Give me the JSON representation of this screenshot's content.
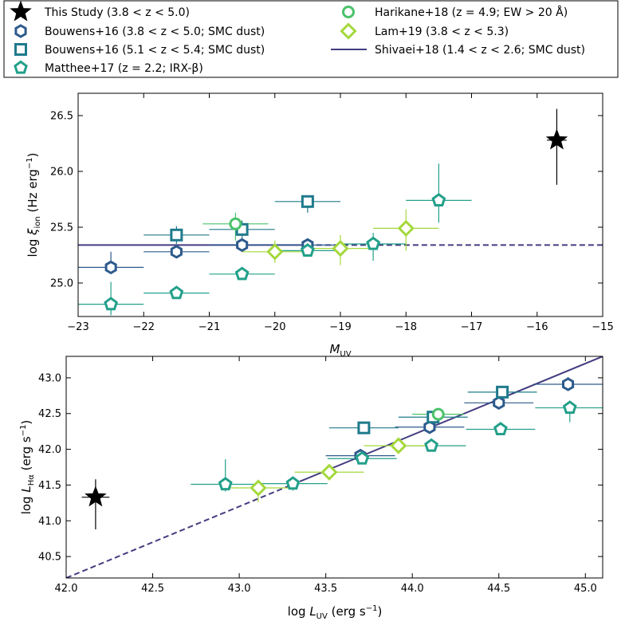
{
  "colors": {
    "black": "#000000",
    "bouwens": "#2d5a8c",
    "bouwens_hi": "#1f7a8c",
    "matthee": "#23a08a",
    "harikane": "#4cc26c",
    "lam": "#a4d83c",
    "shivaei": "#433d80"
  },
  "legend": {
    "this_study": "This Study (3.8 < z < 5.0)",
    "bouwens_lo": "Bouwens+16 (3.8 < z < 5.0; SMC dust)",
    "bouwens_hi": "Bouwens+16 (5.1 < z < 5.4; SMC dust)",
    "matthee": "Matthee+17 (z = 2.2; IRX-β)",
    "harikane": "Harikane+18 (z = 4.9; EW > 20 Å)",
    "lam": "Lam+19 (3.8 < z < 5.3)",
    "shivaei": "Shivaei+18 (1.4 < z < 2.6; SMC dust)"
  },
  "chart_data": [
    {
      "type": "scatter",
      "panel": "top",
      "xlabel": "M_UV",
      "ylabel": "log ξ_ion (Hz erg⁻¹)",
      "xlim": [
        -23,
        -15
      ],
      "ylim": [
        24.7,
        26.7
      ],
      "xticks": [
        "−23",
        "−22",
        "−21",
        "−20",
        "−19",
        "−18",
        "−17",
        "−16",
        "−15"
      ],
      "yticks": [
        "25.0",
        "25.5",
        "26.0",
        "26.5"
      ],
      "series": [
        {
          "name": "This Study",
          "marker": "star",
          "points": [
            {
              "x": -15.7,
              "y": 26.28,
              "xerr": 0.15,
              "yerr_lo": 0.4,
              "yerr_hi": 0.28
            }
          ]
        },
        {
          "name": "Bouwens+16 (3.8<z<5.0)",
          "marker": "hexagon",
          "points": [
            {
              "x": -22.5,
              "y": 25.14,
              "xerr": 0.5,
              "yerr_lo": 0.0,
              "yerr_hi": 0.14
            },
            {
              "x": -21.5,
              "y": 25.28,
              "xerr": 0.5,
              "yerr_lo": 0.0,
              "yerr_hi": 0.0
            },
            {
              "x": -20.5,
              "y": 25.34,
              "xerr": 0.5,
              "yerr_lo": 0.0,
              "yerr_hi": 0.0
            },
            {
              "x": -19.5,
              "y": 25.34,
              "xerr": 0.5,
              "yerr_lo": 0.0,
              "yerr_hi": 0.0
            }
          ]
        },
        {
          "name": "Bouwens+16 (5.1<z<5.4)",
          "marker": "square",
          "points": [
            {
              "x": -21.5,
              "y": 25.43,
              "xerr": 0.5,
              "yerr_lo": 0.08,
              "yerr_hi": 0.08
            },
            {
              "x": -20.5,
              "y": 25.48,
              "xerr": 0.5,
              "yerr_lo": 0.08,
              "yerr_hi": 0.08
            },
            {
              "x": -19.5,
              "y": 25.73,
              "xerr": 0.5,
              "yerr_lo": 0.1,
              "yerr_hi": 0.05
            }
          ]
        },
        {
          "name": "Matthee+17",
          "marker": "pentagon",
          "points": [
            {
              "x": -22.5,
              "y": 24.81,
              "xerr": 0.5,
              "yerr_lo": 0.1,
              "yerr_hi": 0.2
            },
            {
              "x": -21.5,
              "y": 24.91,
              "xerr": 0.5,
              "yerr_lo": 0.0,
              "yerr_hi": 0.0
            },
            {
              "x": -20.5,
              "y": 25.08,
              "xerr": 0.5,
              "yerr_lo": 0.0,
              "yerr_hi": 0.0
            },
            {
              "x": -19.5,
              "y": 25.29,
              "xerr": 0.5,
              "yerr_lo": 0.0,
              "yerr_hi": 0.0
            },
            {
              "x": -18.5,
              "y": 25.35,
              "xerr": 0.5,
              "yerr_lo": 0.15,
              "yerr_hi": 0.1
            },
            {
              "x": -17.5,
              "y": 25.74,
              "xerr": 0.5,
              "yerr_lo": 0.2,
              "yerr_hi": 0.33
            }
          ]
        },
        {
          "name": "Harikane+18",
          "marker": "circle",
          "points": [
            {
              "x": -20.6,
              "y": 25.53,
              "xerr": 0.5,
              "yerr_lo": 0.15,
              "yerr_hi": 0.1
            }
          ]
        },
        {
          "name": "Lam+19",
          "marker": "diamond",
          "points": [
            {
              "x": -20.0,
              "y": 25.28,
              "xerr": 0.5,
              "yerr_lo": 0.1,
              "yerr_hi": 0.1
            },
            {
              "x": -19.0,
              "y": 25.31,
              "xerr": 0.5,
              "yerr_lo": 0.15,
              "yerr_hi": 0.12
            },
            {
              "x": -18.0,
              "y": 25.49,
              "xerr": 0.5,
              "yerr_lo": 0.2,
              "yerr_hi": 0.17
            }
          ]
        }
      ],
      "lines": [
        {
          "name": "Shivaei+18",
          "style": "solid",
          "x": [
            -23,
            -19.5
          ],
          "y": [
            25.34,
            25.34
          ]
        },
        {
          "name": "Shivaei+18",
          "style": "dashed",
          "x": [
            -19.5,
            -15
          ],
          "y": [
            25.34,
            25.34
          ]
        }
      ]
    },
    {
      "type": "scatter",
      "panel": "bottom",
      "xlabel": "log L_UV (erg s⁻¹)",
      "ylabel": "log L_Hα (erg s⁻¹)",
      "xlim": [
        42.0,
        45.1
      ],
      "ylim": [
        40.2,
        43.3
      ],
      "xticks": [
        "42.0",
        "42.5",
        "43.0",
        "43.5",
        "44.0",
        "44.5",
        "45.0"
      ],
      "yticks": [
        "40.5",
        "41.0",
        "41.5",
        "42.0",
        "42.5",
        "43.0"
      ],
      "series": [
        {
          "name": "This Study",
          "marker": "star",
          "points": [
            {
              "x": 42.17,
              "y": 41.33,
              "xerr": 0.08,
              "yerr_lo": 0.45,
              "yerr_hi": 0.25
            }
          ]
        },
        {
          "name": "Bouwens+16 (3.8<z<5.0)",
          "marker": "hexagon",
          "points": [
            {
              "x": 43.7,
              "y": 41.91,
              "xerr": 0.2,
              "yerr_lo": 0.0,
              "yerr_hi": 0.0
            },
            {
              "x": 44.1,
              "y": 42.31,
              "xerr": 0.2,
              "yerr_lo": 0.0,
              "yerr_hi": 0.0
            },
            {
              "x": 44.5,
              "y": 42.65,
              "xerr": 0.2,
              "yerr_lo": 0.0,
              "yerr_hi": 0.0
            },
            {
              "x": 44.9,
              "y": 42.91,
              "xerr": 0.2,
              "yerr_lo": 0.0,
              "yerr_hi": 0.1
            }
          ]
        },
        {
          "name": "Bouwens+16 (5.1<z<5.4)",
          "marker": "square",
          "points": [
            {
              "x": 43.72,
              "y": 42.3,
              "xerr": 0.2,
              "yerr_lo": 0.0,
              "yerr_hi": 0.0
            },
            {
              "x": 44.12,
              "y": 42.45,
              "xerr": 0.2,
              "yerr_lo": 0.05,
              "yerr_hi": 0.05
            },
            {
              "x": 44.52,
              "y": 42.8,
              "xerr": 0.2,
              "yerr_lo": 0.05,
              "yerr_hi": 0.05
            }
          ]
        },
        {
          "name": "Matthee+17",
          "marker": "pentagon",
          "points": [
            {
              "x": 42.92,
              "y": 41.51,
              "xerr": 0.2,
              "yerr_lo": 0.1,
              "yerr_hi": 0.35
            },
            {
              "x": 43.31,
              "y": 41.52,
              "xerr": 0.2,
              "yerr_lo": 0.1,
              "yerr_hi": 0.05
            },
            {
              "x": 43.71,
              "y": 41.87,
              "xerr": 0.2,
              "yerr_lo": 0.0,
              "yerr_hi": 0.0
            },
            {
              "x": 44.11,
              "y": 42.05,
              "xerr": 0.2,
              "yerr_lo": 0.0,
              "yerr_hi": 0.0
            },
            {
              "x": 44.51,
              "y": 42.28,
              "xerr": 0.2,
              "yerr_lo": 0.0,
              "yerr_hi": 0.0
            },
            {
              "x": 44.91,
              "y": 42.58,
              "xerr": 0.2,
              "yerr_lo": 0.2,
              "yerr_hi": 0.1
            }
          ]
        },
        {
          "name": "Harikane+18",
          "marker": "circle",
          "points": [
            {
              "x": 44.15,
              "y": 42.49,
              "xerr": 0.15,
              "yerr_lo": 0.0,
              "yerr_hi": 0.0
            }
          ]
        },
        {
          "name": "Lam+19",
          "marker": "diamond",
          "points": [
            {
              "x": 43.11,
              "y": 41.46,
              "xerr": 0.2,
              "yerr_lo": 0.2,
              "yerr_hi": 0.1
            },
            {
              "x": 43.52,
              "y": 41.68,
              "xerr": 0.2,
              "yerr_lo": 0.1,
              "yerr_hi": 0.05
            },
            {
              "x": 43.92,
              "y": 42.05,
              "xerr": 0.2,
              "yerr_lo": 0.0,
              "yerr_hi": 0.0
            }
          ]
        }
      ],
      "lines": [
        {
          "name": "Shivaei+18",
          "style": "dashed",
          "x": [
            42.0,
            43.35
          ],
          "y": [
            40.2,
            41.55
          ]
        },
        {
          "name": "Shivaei+18",
          "style": "solid",
          "x": [
            43.35,
            45.1
          ],
          "y": [
            41.55,
            43.3
          ]
        }
      ]
    }
  ]
}
